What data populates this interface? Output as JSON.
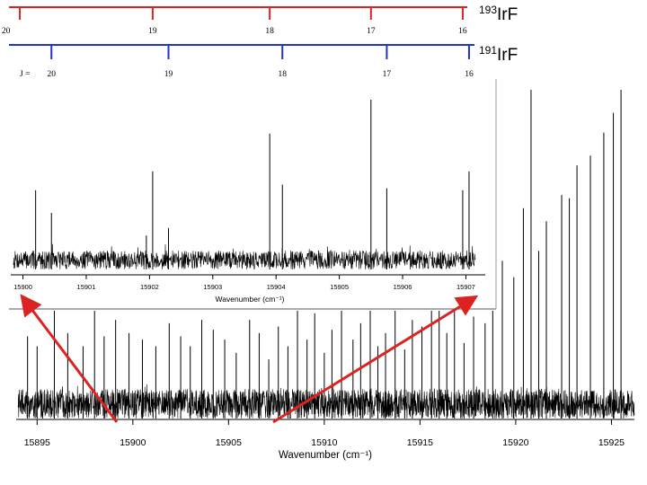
{
  "ladders": [
    {
      "isotope_mass": "193",
      "isotope_element": "Ir",
      "isotope_rest": "F",
      "color": "#dd2222",
      "j_prefix": "J = 20",
      "j_labels": [
        "19",
        "18",
        "17",
        "16"
      ],
      "j_positions_wavenumber": [
        15899.95,
        15902.05,
        15903.9,
        15905.5,
        15906.95
      ]
    },
    {
      "isotope_mass": "191",
      "isotope_element": "Ir",
      "isotope_rest": "F",
      "color": "#2233cc",
      "j_prefix": "J =",
      "j_labels": [
        "20",
        "19",
        "18",
        "17",
        "16"
      ],
      "j_positions_wavenumber": [
        15900.45,
        15902.3,
        15904.1,
        15905.75,
        15907.05
      ]
    }
  ],
  "arrows": {
    "color": "#dd2222"
  },
  "chart_data": [
    {
      "type": "line",
      "panel": "inset",
      "xlabel": "Wavenumber (cm⁻¹)",
      "xlim": [
        15899.85,
        15907.15
      ],
      "xticks": [
        15900,
        15901,
        15902,
        15903,
        15904,
        15905,
        15906,
        15907
      ],
      "xtick_labels": [
        "15900",
        "15901",
        "15902",
        "15903",
        "15904",
        "15905",
        "15906",
        "15907"
      ],
      "ylim": [
        0,
        1
      ],
      "baseline": 0.1,
      "peaks_wavenumber_relative_height": [
        [
          15900.2,
          0.42
        ],
        [
          15900.45,
          0.3
        ],
        [
          15901.95,
          0.18
        ],
        [
          15902.05,
          0.52
        ],
        [
          15902.3,
          0.22
        ],
        [
          15903.9,
          0.72
        ],
        [
          15904.1,
          0.45
        ],
        [
          15905.5,
          0.9
        ],
        [
          15905.75,
          0.43
        ],
        [
          15906.95,
          0.42
        ],
        [
          15907.05,
          0.52
        ]
      ]
    },
    {
      "type": "line",
      "panel": "main",
      "xlabel": "Wavenumber (cm⁻¹)",
      "xlim": [
        15894.0,
        15926.2
      ],
      "xticks": [
        15895,
        15900,
        15905,
        15910,
        15915,
        15920,
        15925
      ],
      "xtick_labels": [
        "15895",
        "15900",
        "15905",
        "15910",
        "15915",
        "15920",
        "15925"
      ],
      "ylim": [
        0,
        1
      ],
      "baseline": 0.09,
      "peaks_wavenumber_relative_height": [
        [
          15920.8,
          1.0
        ],
        [
          15925.5,
          1.0
        ],
        [
          15925.1,
          0.93
        ],
        [
          15924.6,
          0.87
        ],
        [
          15923.9,
          0.8
        ],
        [
          15923.2,
          0.77
        ],
        [
          15922.8,
          0.67
        ],
        [
          15922.4,
          0.68
        ],
        [
          15921.6,
          0.6
        ],
        [
          15921.2,
          0.51
        ],
        [
          15920.4,
          0.64
        ],
        [
          15919.9,
          0.43
        ],
        [
          15919.3,
          0.48
        ],
        [
          15918.8,
          0.46
        ],
        [
          15918.4,
          0.29
        ],
        [
          15917.8,
          0.31
        ],
        [
          15917.3,
          0.23
        ],
        [
          15916.8,
          0.33
        ],
        [
          15916.4,
          0.26
        ],
        [
          15916.0,
          0.39
        ],
        [
          15915.6,
          0.4
        ],
        [
          15915.1,
          0.28
        ],
        [
          15914.6,
          0.3
        ],
        [
          15914.2,
          0.21
        ],
        [
          15913.7,
          0.37
        ],
        [
          15913.2,
          0.26
        ],
        [
          15912.8,
          0.22
        ],
        [
          15912.4,
          0.33
        ],
        [
          15911.9,
          0.29
        ],
        [
          15911.5,
          0.24
        ],
        [
          15910.9,
          0.39
        ],
        [
          15910.4,
          0.27
        ],
        [
          15910.0,
          0.2
        ],
        [
          15909.5,
          0.32
        ],
        [
          15909.1,
          0.24
        ],
        [
          15908.6,
          0.36
        ],
        [
          15908.1,
          0.22
        ],
        [
          15907.6,
          0.28
        ],
        [
          15907.1,
          0.18
        ],
        [
          15906.6,
          0.26
        ],
        [
          15906.1,
          0.3
        ],
        [
          15905.4,
          0.2
        ],
        [
          15904.8,
          0.24
        ],
        [
          15904.2,
          0.27
        ],
        [
          15903.6,
          0.3
        ],
        [
          15903.0,
          0.22
        ],
        [
          15902.5,
          0.25
        ],
        [
          15901.9,
          0.29
        ],
        [
          15901.2,
          0.22
        ],
        [
          15900.5,
          0.24
        ],
        [
          15899.8,
          0.26
        ],
        [
          15899.1,
          0.3
        ],
        [
          15898.5,
          0.25
        ],
        [
          15898.0,
          0.38
        ],
        [
          15897.4,
          0.22
        ],
        [
          15896.6,
          0.26
        ],
        [
          15895.9,
          0.33
        ],
        [
          15895.0,
          0.22
        ],
        [
          15894.5,
          0.25
        ]
      ]
    }
  ]
}
